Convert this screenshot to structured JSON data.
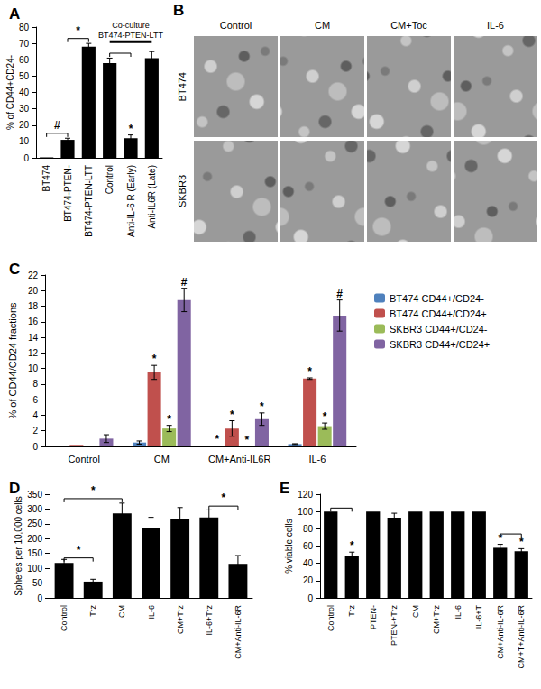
{
  "chart_data": [
    {
      "type": "bar",
      "title": "A",
      "categories": [
        "BT474",
        "BT474-PTEN-",
        "BT474-PTEN-LTT",
        "Control",
        "Anti-IL-6 R (Early)",
        "Anti-IL6R (Late)"
      ],
      "values": [
        0.3,
        11,
        68,
        58,
        12,
        61
      ],
      "errors": [
        0,
        1,
        2,
        3,
        2,
        4
      ],
      "sig": [
        null,
        null,
        null,
        null,
        "*",
        null
      ],
      "brackets": [
        {
          "from": 0,
          "to": 1,
          "y": 15,
          "label": "#"
        },
        {
          "from": 1,
          "to": 2,
          "y": 73,
          "label": "*"
        },
        {
          "from": 3,
          "to": 4,
          "y": 64
        },
        {
          "from": 3,
          "to": 5,
          "y": 71,
          "label": "Co-culture BT474-PTEN-LTT",
          "line_style": "bold"
        }
      ],
      "color": "#000000",
      "ylabel": "% of CD44+CD24-",
      "ylim": [
        0,
        80
      ],
      "yticks": [
        0,
        10,
        20,
        30,
        40,
        50,
        60,
        70,
        80
      ],
      "grid": false
    },
    {
      "type": "bar",
      "title": "C",
      "categories": [
        "Control",
        "CM",
        "CM+Anti-IL6R",
        "IL-6"
      ],
      "series": [
        {
          "name": "BT474 CD44+/CD24-",
          "color": "#4F81BD",
          "values": [
            0,
            0.5,
            0.1,
            0.3
          ],
          "errors": [
            0,
            0.2,
            0,
            0.05
          ],
          "sig": [
            null,
            null,
            "*",
            null
          ]
        },
        {
          "name": "BT474 CD44+/CD24+",
          "color": "#C0504D",
          "values": [
            0.2,
            9.5,
            2.3,
            8.7
          ],
          "errors": [
            0,
            0.9,
            1.0,
            0.1
          ],
          "sig": [
            null,
            "*",
            "*",
            "*"
          ]
        },
        {
          "name": "SKBR3 CD44+/CD24-",
          "color": "#9BBB59",
          "values": [
            0.1,
            2.3,
            0.05,
            2.6
          ],
          "errors": [
            0,
            0.4,
            0,
            0.4
          ],
          "sig": [
            null,
            "*",
            "*",
            "*"
          ]
        },
        {
          "name": "SKBR3 CD44+/CD24+",
          "color": "#8064A2",
          "values": [
            1.0,
            18.8,
            3.5,
            16.8
          ],
          "errors": [
            0.5,
            1.5,
            0.8,
            2.0
          ],
          "sig": [
            null,
            "#",
            "*",
            "#"
          ]
        }
      ],
      "ylabel": "% of CD44/CD24 fractions",
      "ylim": [
        0,
        22
      ],
      "yticks": [
        0,
        2,
        4,
        6,
        8,
        10,
        12,
        14,
        16,
        18,
        20,
        22
      ],
      "legend": "right",
      "grid": false
    },
    {
      "type": "bar",
      "title": "D",
      "categories": [
        "Control",
        "Trz",
        "CM",
        "IL-6",
        "CM+Trz",
        "IL-6+Trz",
        "CM+Anti-IL-6R"
      ],
      "values": [
        118,
        55,
        285,
        237,
        265,
        272,
        115
      ],
      "errors": [
        12,
        8,
        35,
        35,
        40,
        25,
        28
      ],
      "sig": [
        null,
        null,
        null,
        null,
        null,
        null,
        null
      ],
      "brackets": [
        {
          "from": 0,
          "to": 1,
          "y": 135,
          "label": "*"
        },
        {
          "from": 0,
          "to": 2,
          "y": 335,
          "label": "*"
        },
        {
          "from": 5,
          "to": 6,
          "y": 310,
          "label": "*"
        }
      ],
      "color": "#000000",
      "ylabel": "Spheres per 10,000 cells",
      "ylim": [
        0,
        350
      ],
      "yticks": [
        0,
        50,
        100,
        150,
        200,
        250,
        300,
        350
      ],
      "grid": false
    },
    {
      "type": "bar",
      "title": "E",
      "categories": [
        "Control",
        "Trz",
        "PTEN-",
        "PTEN-+Trz",
        "CM",
        "CM+Trz",
        "IL-6",
        "IL-6+T",
        "CM+Anti-IL-6R",
        "CM+T+Anti-IL-6R"
      ],
      "values": [
        100,
        48,
        100,
        93,
        100,
        100,
        100,
        100,
        58,
        54
      ],
      "errors": [
        0,
        5,
        0,
        5,
        0,
        0,
        0,
        0,
        4,
        3
      ],
      "sig": [
        null,
        "*",
        null,
        null,
        null,
        null,
        null,
        null,
        "*",
        "*"
      ],
      "brackets": [
        {
          "from": 0,
          "to": 1,
          "y": 104
        },
        {
          "from": 8,
          "to": 9,
          "y": 74
        }
      ],
      "color": "#000000",
      "ylabel": "% viable cells",
      "ylim": [
        0,
        120
      ],
      "yticks": [
        0,
        20,
        40,
        60,
        80,
        100,
        120
      ],
      "grid": false
    }
  ],
  "panel_b": {
    "title": "B",
    "columns": [
      "Control",
      "CM",
      "CM+Toc",
      "IL-6"
    ],
    "rows": [
      "BT474",
      "SKBR3"
    ]
  }
}
